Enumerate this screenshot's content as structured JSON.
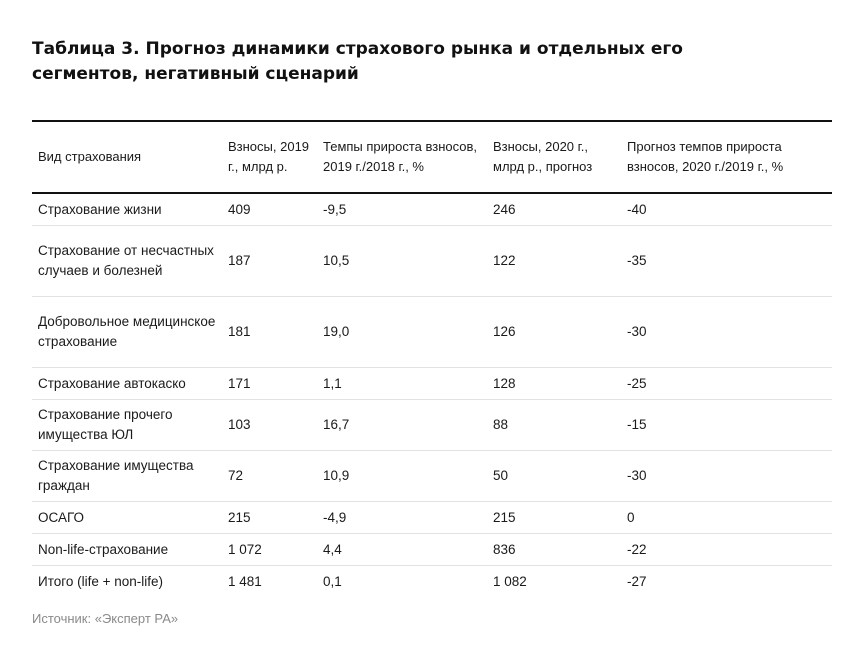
{
  "title": "Таблица 3. Прогноз динамики страхового рынка и отдельных его сегментов, негативный сценарий",
  "table": {
    "headers": [
      "Вид страхования",
      "Взносы, 2019 г., млрд р.",
      "Темпы прироста взносов, 2019 г./2018 г., %",
      "Взносы, 2020 г., млрд р., прогноз",
      "Прогноз темпов прироста взносов, 2020 г./2019 г., %"
    ],
    "rows": [
      [
        "Страхование жизни",
        "409",
        "-9,5",
        "246",
        "-40"
      ],
      [
        "Страхование от несчастных случаев и болезней",
        "187",
        "10,5",
        "122",
        "-35"
      ],
      [
        "Добровольное медицинское страхование",
        "181",
        "19,0",
        "126",
        "-30"
      ],
      [
        "Страхование автокаско",
        "171",
        "1,1",
        "128",
        "-25"
      ],
      [
        "Страхование прочего имущества ЮЛ",
        "103",
        "16,7",
        "88",
        "-15"
      ],
      [
        "Страхование имущества граждан",
        "72",
        "10,9",
        "50",
        "-30"
      ],
      [
        "ОСАГО",
        "215",
        "-4,9",
        "215",
        "0"
      ],
      [
        "Non-life-страхование",
        "1 072",
        "4,4",
        "836",
        "-22"
      ],
      [
        "Итого (life + non-life)",
        "1 481",
        "0,1",
        "1 082",
        "-27"
      ]
    ]
  },
  "source": "Источник: «Эксперт РА»"
}
